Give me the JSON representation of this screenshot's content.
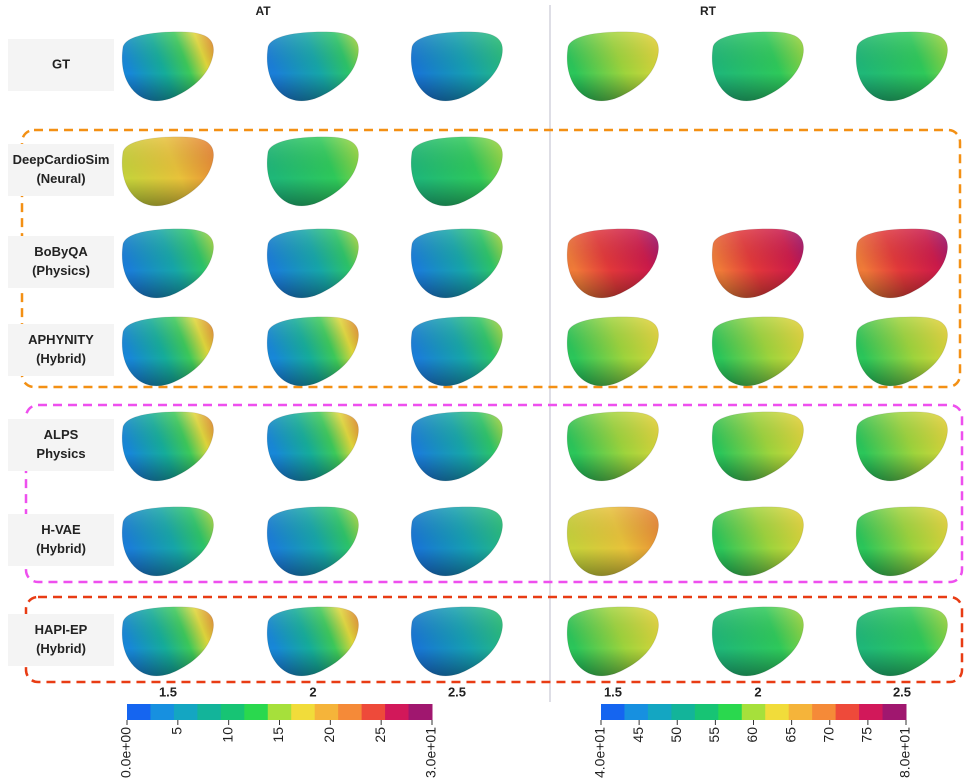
{
  "panels": [
    {
      "header": "AT",
      "column_labels": [
        "1.5",
        "2",
        "2.5"
      ],
      "colorbar_ticks": [
        "0.0e+00",
        "5",
        "10",
        "15",
        "20",
        "25",
        "3.0e+01"
      ]
    },
    {
      "header": "RT",
      "column_labels": [
        "1.5",
        "2",
        "2.5"
      ],
      "colorbar_ticks": [
        "4.0e+01",
        "45",
        "50",
        "55",
        "60",
        "65",
        "70",
        "75",
        "8.0e+01"
      ]
    }
  ],
  "rows": [
    {
      "label": [
        "GT"
      ]
    },
    {
      "label": [
        "DeepCardioSim",
        "(Neural)"
      ]
    },
    {
      "label": [
        "BoByQA",
        "(Physics)"
      ]
    },
    {
      "label": [
        "APHYNITY",
        "(Hybrid)"
      ]
    },
    {
      "label": [
        "ALPS",
        "Physics"
      ]
    },
    {
      "label": [
        "H-VAE",
        "(Hybrid)"
      ]
    },
    {
      "label": [
        "HAPI-EP",
        "(Hybrid)"
      ]
    }
  ],
  "colorbar_colors": [
    "#1565f0",
    "#1790e0",
    "#14a6c2",
    "#13b49a",
    "#17c474",
    "#2ad84e",
    "#a6e03b",
    "#f1dc3a",
    "#f5b43a",
    "#f58a38",
    "#ee4a3a",
    "#d2185a",
    "#a0176f"
  ]
}
